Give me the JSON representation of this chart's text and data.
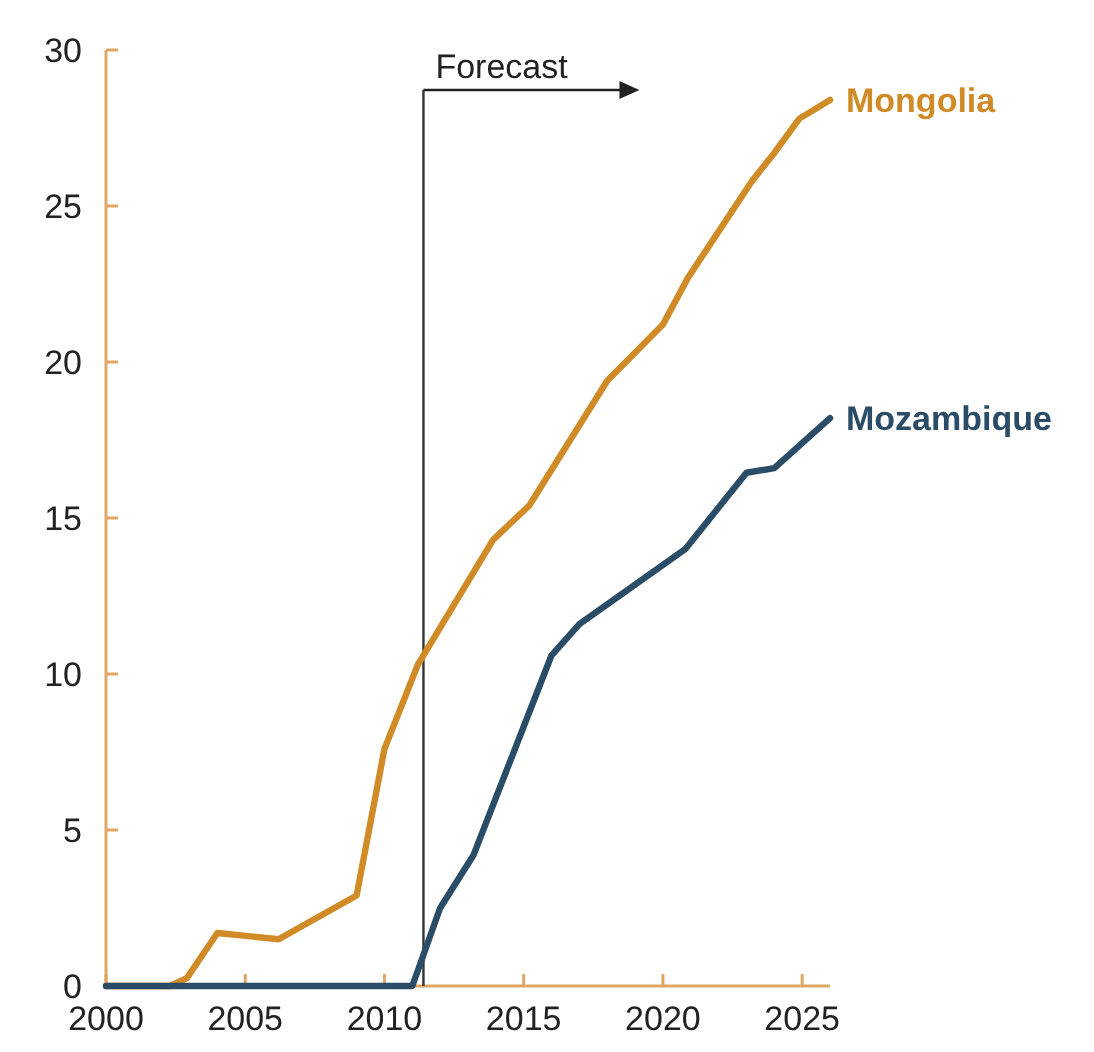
{
  "chart_data": {
    "type": "line",
    "xlim": [
      2000,
      2026
    ],
    "xticks": [
      2000,
      2005,
      2010,
      2015,
      2020,
      2025
    ],
    "ylim": [
      0,
      30
    ],
    "yticks": [
      0,
      5,
      10,
      15,
      20,
      25,
      30
    ],
    "grid": false,
    "marker": "none",
    "line_style": "solid",
    "ref_lines": [
      {
        "axis": "x",
        "value": 2011.4,
        "label": "Forecast",
        "color": "#333333"
      }
    ],
    "series": [
      {
        "name": "Mongolia",
        "color": "#d08a26",
        "x": [
          2000,
          2002.3,
          2002.9,
          2004,
          2006.2,
          2009,
          2010,
          2011.2,
          2013.9,
          2015.2,
          2018,
          2020,
          2020.9,
          2023.2,
          2024,
          2024.9,
          2026
        ],
        "values": [
          0,
          0,
          0.25,
          1.7,
          1.5,
          2.9,
          7.6,
          10.3,
          14.3,
          15.4,
          19.4,
          21.2,
          22.7,
          25.8,
          26.7,
          27.8,
          28.4
        ]
      },
      {
        "name": "Mozambique",
        "color": "#2b4c66",
        "x": [
          2000,
          2011,
          2012,
          2013.2,
          2016,
          2017,
          2020.8,
          2023,
          2024,
          2026
        ],
        "values": [
          0,
          0,
          2.5,
          4.2,
          10.6,
          11.6,
          14.0,
          16.45,
          16.6,
          18.2
        ]
      }
    ]
  }
}
